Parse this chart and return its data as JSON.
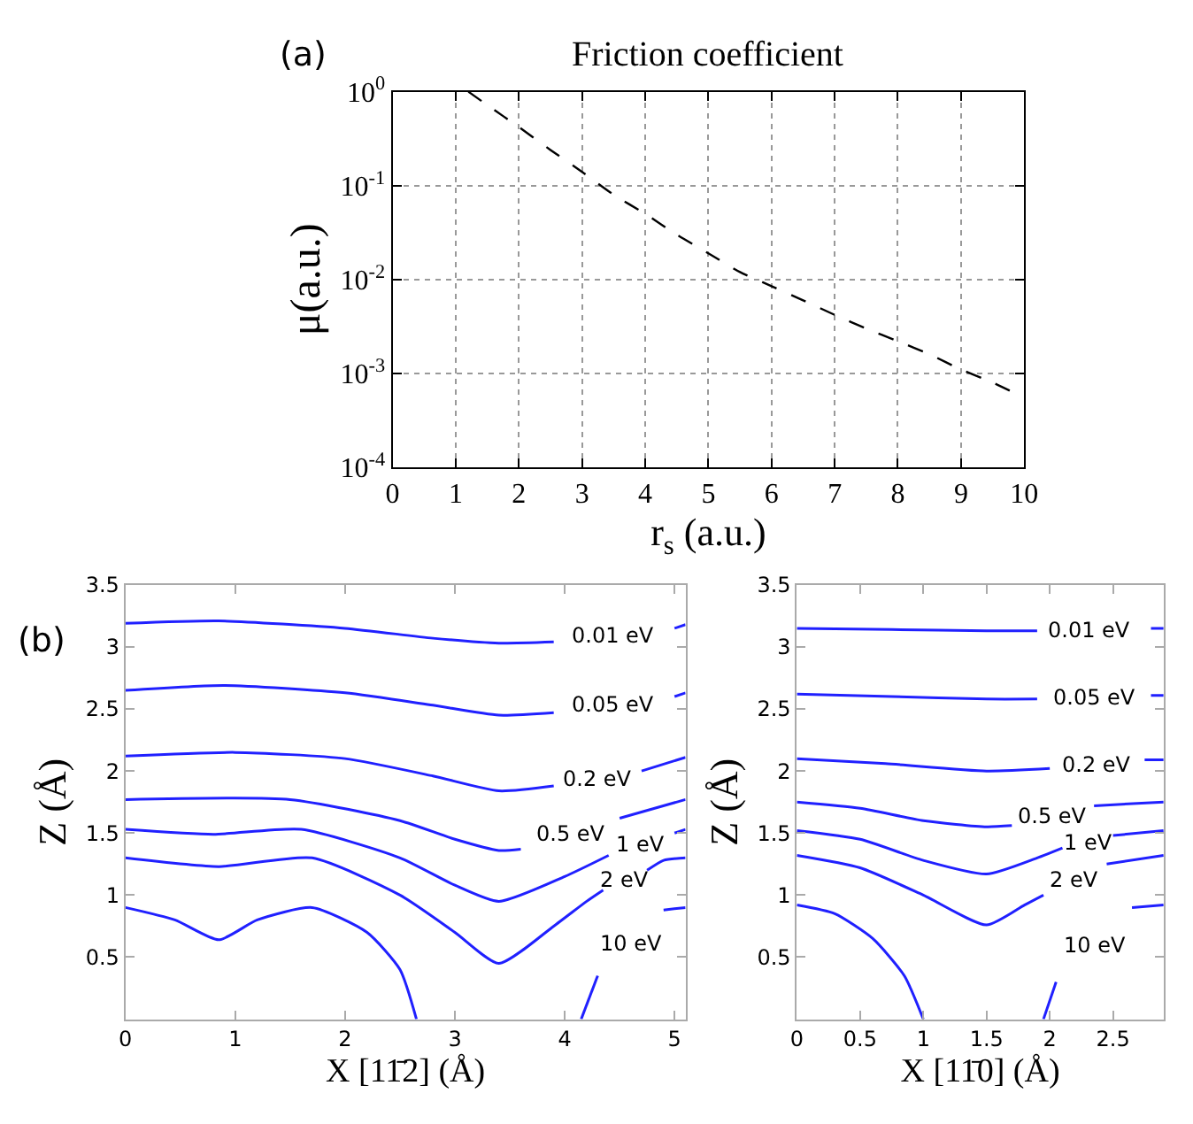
{
  "chart_data": [
    {
      "type": "line",
      "title": "Friction coefficient",
      "xlabel": "r$_{s}$ (a.u.)",
      "ylabel": "μ(a.u.)",
      "annotations": [
        "(a)"
      ],
      "log": "y",
      "grid": true,
      "legend": false,
      "line_style": "dashed",
      "marker": "none",
      "xlim": [
        0,
        10
      ],
      "xticks": [
        0,
        1,
        2,
        3,
        4,
        5,
        6,
        7,
        8,
        9,
        10
      ],
      "ylim": [
        0.0001,
        1
      ],
      "yticks": [
        {
          "value": 0.0001,
          "label": "10$^{-4}$"
        },
        {
          "value": 0.001,
          "label": "10$^{-3}$"
        },
        {
          "value": 0.01,
          "label": "10$^{-2}$"
        },
        {
          "value": 0.1,
          "label": "10$^{-1}$"
        },
        {
          "value": 1,
          "label": "10$^{0}$"
        }
      ],
      "x": [
        1.2,
        1.5,
        2,
        2.5,
        3,
        3.5,
        4,
        4.5,
        5,
        5.5,
        6,
        6.5,
        7,
        7.5,
        8,
        8.5,
        9,
        9.5,
        10
      ],
      "series": [
        {
          "color": "#000000",
          "values": [
            1,
            0.72,
            0.42,
            0.24,
            0.14,
            0.08,
            0.05,
            0.03,
            0.019,
            0.012,
            0.0085,
            0.006,
            0.0042,
            0.003,
            0.0022,
            0.0016,
            0.0011,
            0.0008,
            0.00055
          ]
        }
      ]
    },
    {
      "type": "line",
      "xlabel": "X [11̄2] (Å)",
      "ylabel": "Z (Å)",
      "annotations": [
        "(b)"
      ],
      "grid": false,
      "legend": false,
      "line_style": "solid",
      "marker": "none",
      "xlim": [
        0,
        5.1
      ],
      "xticks": [
        0,
        1,
        2,
        3,
        4,
        5
      ],
      "ylim": [
        0,
        3.5
      ],
      "yticks": [
        0.5,
        1,
        1.5,
        2,
        2.5,
        3,
        3.5
      ],
      "series": [
        {
          "name": "0.01 eV",
          "color": "#2020ff",
          "x": [
            0,
            0.85,
            2,
            2.8,
            3.4,
            3.9,
            4.45,
            5.0,
            5.1
          ],
          "values": [
            3.19,
            3.21,
            3.15,
            3.07,
            3.03,
            3.04,
            null,
            3.15,
            3.18
          ]
        },
        {
          "name": "0.05 eV",
          "color": "#2020ff",
          "x": [
            0,
            0.9,
            2,
            2.8,
            3.4,
            3.9,
            4.45,
            5.0,
            5.1
          ],
          "values": [
            2.65,
            2.69,
            2.63,
            2.53,
            2.45,
            2.47,
            null,
            2.6,
            2.63
          ]
        },
        {
          "name": "0.2 eV",
          "color": "#2020ff",
          "x": [
            0,
            1,
            2,
            2.8,
            3.4,
            3.9,
            4.3,
            4.7,
            5.1
          ],
          "values": [
            2.12,
            2.15,
            2.1,
            1.96,
            1.84,
            1.88,
            null,
            2.0,
            2.11
          ]
        },
        {
          "name": "0.5 eV",
          "color": "#2020ff",
          "x": [
            0,
            1.5,
            2.5,
            3.0,
            3.4,
            3.6,
            4.05,
            4.5,
            5.1
          ],
          "values": [
            1.77,
            1.77,
            1.6,
            1.45,
            1.36,
            1.37,
            null,
            1.62,
            1.77
          ]
        },
        {
          "name": "1 eV",
          "color": "#2020ff",
          "x": [
            0,
            0.8,
            1.6,
            2.5,
            3.0,
            3.4,
            4.0,
            4.4,
            4.7,
            5.0,
            5.1
          ],
          "values": [
            1.53,
            1.49,
            1.53,
            1.3,
            1.08,
            0.95,
            1.15,
            1.32,
            null,
            1.5,
            1.53
          ]
        },
        {
          "name": "2 eV",
          "color": "#2020ff",
          "x": [
            0,
            0.85,
            1.7,
            2.5,
            3.0,
            3.4,
            3.9,
            4.2,
            4.35,
            4.55,
            4.75,
            4.9,
            5.1
          ],
          "values": [
            1.3,
            1.23,
            1.3,
            1.0,
            0.7,
            0.45,
            0.75,
            0.95,
            1.04,
            null,
            1.2,
            1.28,
            1.3
          ]
        },
        {
          "name": "10 eV",
          "color": "#2020ff",
          "x": [
            0,
            0.45,
            0.85,
            1.2,
            1.7,
            2.2,
            2.5,
            2.65,
            3.4,
            4.15,
            4.3,
            4.6,
            4.9,
            5.1
          ],
          "values": [
            0.9,
            0.8,
            0.64,
            0.8,
            0.9,
            0.7,
            0.4,
            0,
            null,
            0,
            0.35,
            null,
            0.88,
            0.9
          ]
        }
      ]
    },
    {
      "type": "line",
      "xlabel": "X [11̄0] (Å)",
      "ylabel": "Z (Å)",
      "grid": false,
      "legend": false,
      "line_style": "solid",
      "marker": "none",
      "xlim": [
        0,
        2.9
      ],
      "xticks": [
        0,
        0.5,
        1,
        1.5,
        2,
        2.5
      ],
      "ylim": [
        0,
        3.5
      ],
      "yticks": [
        0.5,
        1,
        1.5,
        2,
        2.5,
        3,
        3.5
      ],
      "series": [
        {
          "name": "0.01 eV",
          "color": "#2020ff",
          "x": [
            0,
            0.75,
            1.5,
            1.9,
            2.32,
            2.8,
            2.9
          ],
          "values": [
            3.15,
            3.14,
            3.13,
            3.13,
            null,
            3.15,
            3.15
          ]
        },
        {
          "name": "0.05 eV",
          "color": "#2020ff",
          "x": [
            0,
            0.75,
            1.5,
            1.9,
            2.35,
            2.8,
            2.9
          ],
          "values": [
            2.62,
            2.6,
            2.58,
            2.58,
            null,
            2.61,
            2.61
          ]
        },
        {
          "name": "0.2 eV",
          "color": "#2020ff",
          "x": [
            0,
            0.7,
            1.5,
            2.0,
            2.37,
            2.75,
            2.9
          ],
          "values": [
            2.1,
            2.06,
            2.0,
            2.02,
            null,
            2.09,
            2.09
          ]
        },
        {
          "name": "0.5 eV",
          "color": "#2020ff",
          "x": [
            0,
            0.5,
            1.0,
            1.5,
            1.7,
            2.02,
            2.35,
            2.9
          ],
          "values": [
            1.75,
            1.7,
            1.6,
            1.55,
            1.56,
            null,
            1.72,
            1.75
          ]
        },
        {
          "name": "1 eV",
          "color": "#2020ff",
          "x": [
            0,
            0.5,
            1.0,
            1.5,
            1.9,
            2.1,
            2.3,
            2.5,
            2.9
          ],
          "values": [
            1.52,
            1.45,
            1.28,
            1.17,
            1.3,
            1.38,
            null,
            1.48,
            1.52
          ]
        },
        {
          "name": "2 eV",
          "color": "#2020ff",
          "x": [
            0,
            0.5,
            1.0,
            1.5,
            1.8,
            1.95,
            2.2,
            2.45,
            2.9
          ],
          "values": [
            1.32,
            1.22,
            1.0,
            0.76,
            0.92,
            1.0,
            null,
            1.25,
            1.32
          ]
        },
        {
          "name": "10 eV",
          "color": "#2020ff",
          "x": [
            0,
            0.3,
            0.6,
            0.85,
            1.0,
            1.5,
            1.95,
            2.05,
            2.35,
            2.65,
            2.9
          ],
          "values": [
            0.92,
            0.85,
            0.65,
            0.35,
            0,
            null,
            0,
            0.3,
            null,
            0.9,
            0.92
          ]
        }
      ]
    }
  ]
}
